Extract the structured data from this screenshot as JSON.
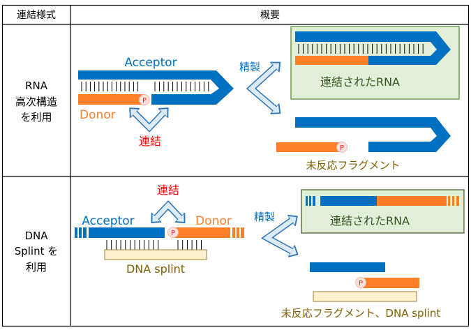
{
  "table": {
    "headers": [
      "連結様式",
      "概要"
    ],
    "rows": [
      {
        "method_lines": [
          "RNA",
          "高次構造",
          "を利用"
        ],
        "acceptor": "Acceptor",
        "donor": "Donor",
        "ligation": "連結",
        "purification": "精製",
        "ligated": "連結されたRNA",
        "unreacted": "未反応フラグメント",
        "phosphate": "P"
      },
      {
        "method_lines": [
          "DNA",
          "Splint を",
          "利用"
        ],
        "acceptor": "Acceptor",
        "donor": "Donor",
        "ligation": "連結",
        "purification": "精製",
        "splint": "DNA splint",
        "ligated": "連結されたRNA",
        "unreacted": "未反応フラグメント、DNA splint",
        "phosphate": "P"
      }
    ]
  },
  "colors": {
    "acceptor": "#0070c0",
    "donor": "#ff7f27",
    "ligation_label": "#ff0000",
    "ligated_box_fill": "#e2f0d9",
    "ligated_box_border": "#548235",
    "ligated_text": "#375623",
    "unreacted_text": "#7f5f00",
    "splint_fill": "#fff2cc",
    "arrow_fill": "#ddebf7",
    "arrow_border": "#2e75b6"
  }
}
